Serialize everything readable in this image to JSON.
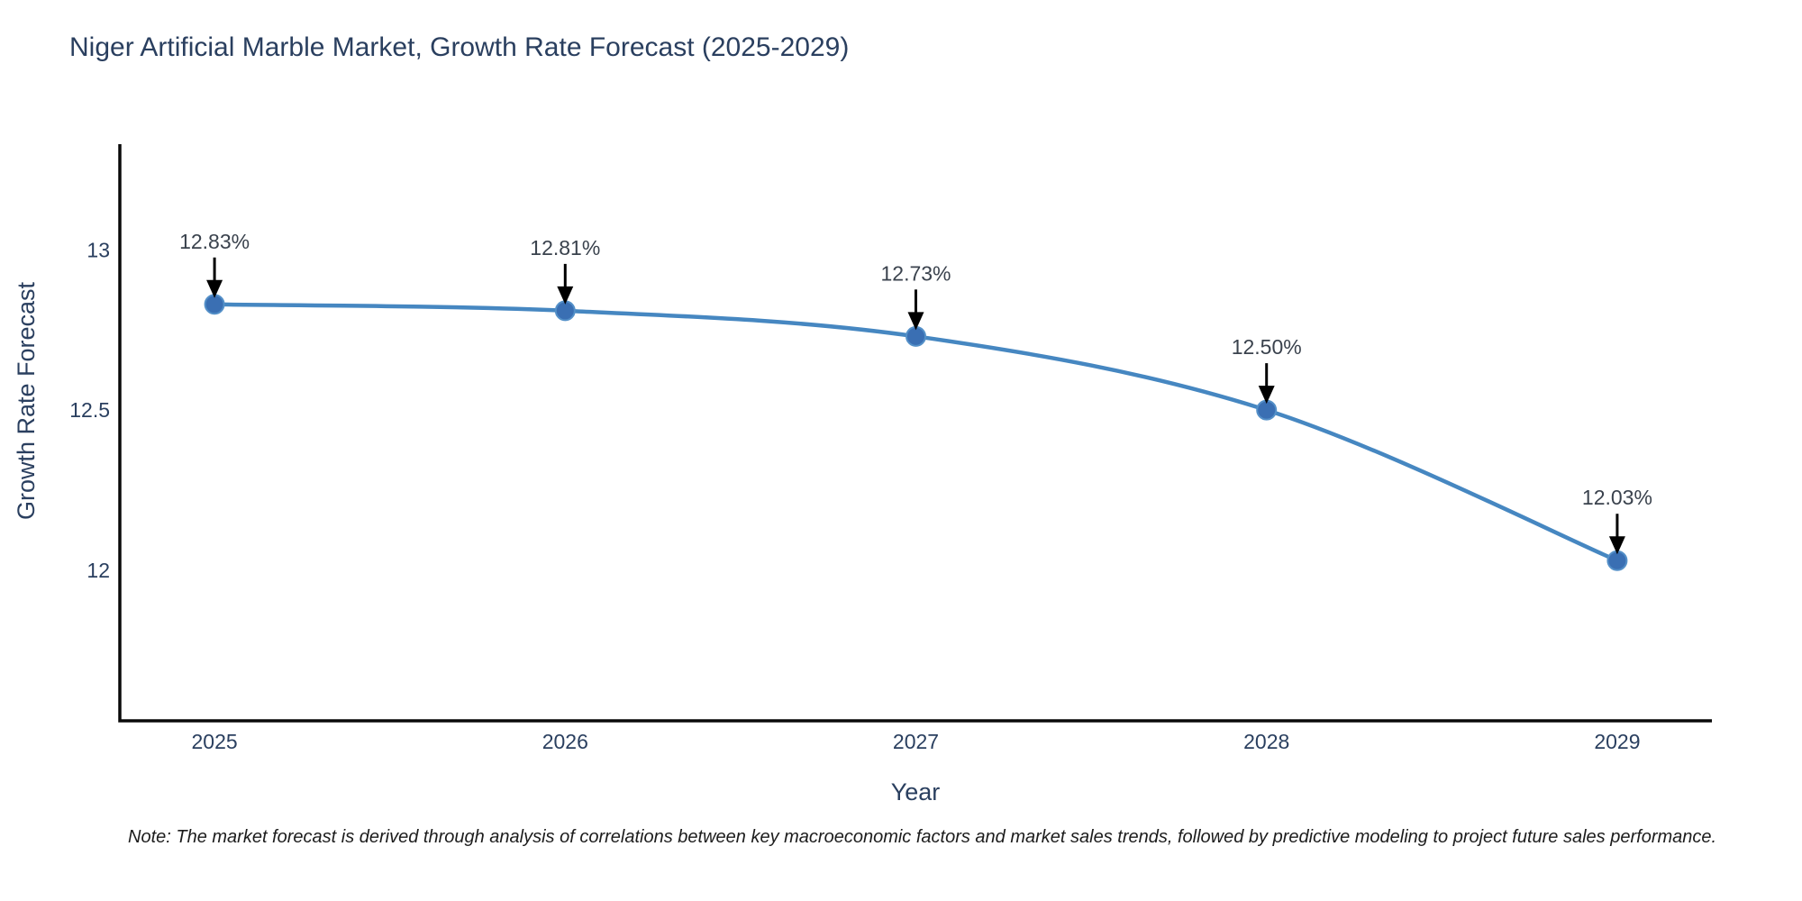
{
  "note": "Note: The market forecast is derived through analysis of correlations between key macroeconomic factors and market sales trends, followed by predictive modeling to project future sales performance.",
  "chart_data": {
    "type": "line",
    "title": "Niger Artificial Marble Market, Growth Rate Forecast (2025-2029)",
    "xlabel": "Year",
    "ylabel": "Growth Rate Forecast",
    "x": [
      2025,
      2026,
      2027,
      2028,
      2029
    ],
    "categories": [
      "2025",
      "2026",
      "2027",
      "2028",
      "2029"
    ],
    "values": [
      12.83,
      12.81,
      12.73,
      12.5,
      12.03
    ],
    "point_labels": [
      "12.83%",
      "12.81%",
      "12.73%",
      "12.50%",
      "12.03%"
    ],
    "yticks": [
      12,
      12.5,
      13
    ],
    "ytick_labels": [
      "12",
      "12.5",
      "13"
    ],
    "ylim": [
      11.53,
      13.33
    ],
    "xlim": [
      2024.73,
      2029.27
    ],
    "grid": false,
    "legend_position": "none",
    "annotation_style": "down-arrow",
    "colors": {
      "line": "#4687c1",
      "marker_fill": "#3a6fb3",
      "marker_edge": "#5490c8",
      "arrow": "#000000",
      "axis_text": "#2a3f5f",
      "annotation_text": "#3a424d",
      "spine": "#0a0a0a"
    }
  }
}
